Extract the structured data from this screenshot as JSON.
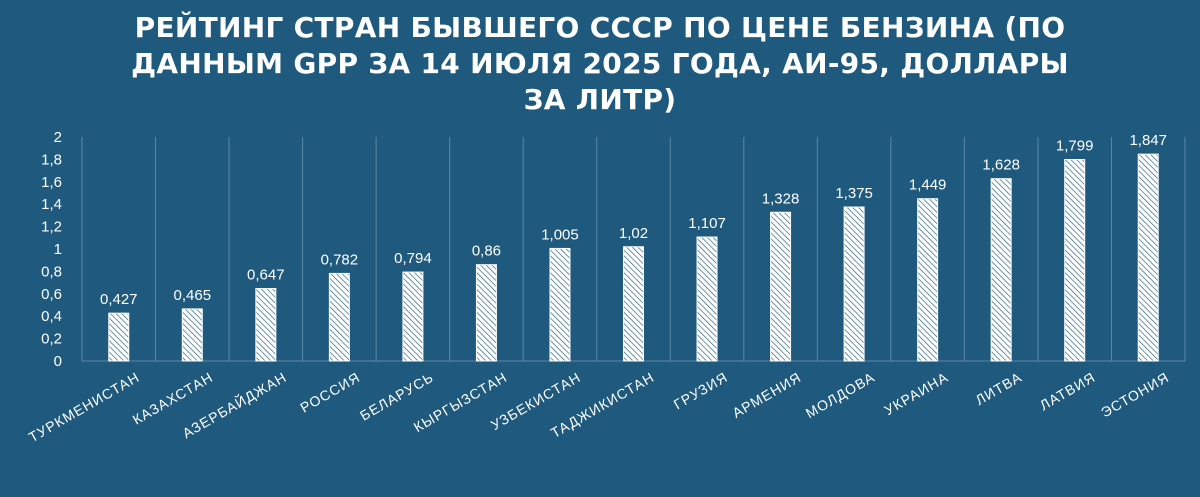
{
  "chart_data": {
    "type": "bar",
    "title": "РЕЙТИНГ СТРАН БЫВШЕГО СССР ПО ЦЕНЕ БЕНЗИНА (ПО ДАННЫМ GPP ЗА 14 ИЮЛЯ 2025 ГОДА, АИ-95, ДОЛЛАРЫ ЗА ЛИТР)",
    "categories": [
      "ТУРКМЕНИСТАН",
      "КАЗАХСТАН",
      "АЗЕРБАЙДЖАН",
      "РОССИЯ",
      "БЕЛАРУСЬ",
      "КЫРГЫЗСТАН",
      "УЗБЕКИСТАН",
      "ТАДЖИКИСТАН",
      "ГРУЗИЯ",
      "АРМЕНИЯ",
      "МОЛДОВА",
      "УКРАИНА",
      "ЛИТВА",
      "ЛАТВИЯ",
      "ЭСТОНИЯ"
    ],
    "values": [
      0.427,
      0.465,
      0.647,
      0.782,
      0.794,
      0.86,
      1.005,
      1.02,
      1.107,
      1.328,
      1.375,
      1.449,
      1.628,
      1.799,
      1.847
    ],
    "value_labels": [
      "0,427",
      "0,465",
      "0,647",
      "0,782",
      "0,794",
      "0,86",
      "1,005",
      "1,02",
      "1,107",
      "1,328",
      "1,375",
      "1,449",
      "1,628",
      "1,799",
      "1,847"
    ],
    "y_ticks": [
      0,
      0.2,
      0.4,
      0.6,
      0.8,
      1,
      1.2,
      1.4,
      1.6,
      1.8,
      2
    ],
    "y_tick_labels": [
      "0",
      "0,2",
      "0,4",
      "0,6",
      "0,8",
      "1",
      "1,2",
      "1,4",
      "1,6",
      "1,8",
      "2"
    ],
    "ylim": [
      0,
      2
    ],
    "grid": "vertical-category-separators",
    "bar_pattern": "diagonal-hatch",
    "colors": {
      "background": "#1f5a7e",
      "bar_fill": "#ffffff",
      "hatch": "#1f5a7e",
      "grid": "#5b87a5",
      "text": "#ffffff"
    }
  }
}
